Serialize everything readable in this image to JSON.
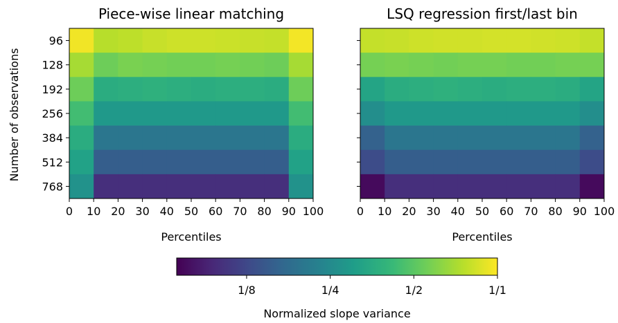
{
  "chart_data": {
    "type": "heatmap",
    "colormap": "viridis",
    "log_scale_color": true,
    "x_categories": [
      "0-10",
      "10-20",
      "20-30",
      "30-40",
      "40-50",
      "50-60",
      "60-70",
      "70-80",
      "80-90",
      "90-100"
    ],
    "x_ticks": [
      "0",
      "10",
      "20",
      "30",
      "40",
      "50",
      "60",
      "70",
      "80",
      "90",
      "100"
    ],
    "y_categories": [
      "96",
      "128",
      "192",
      "256",
      "384",
      "512",
      "768"
    ],
    "ylabel": "Number of observations",
    "panels": [
      {
        "title": "Piece-wise linear matching",
        "xlabel": "Percentiles",
        "values": [
          [
            0.95,
            0.75,
            0.77,
            0.8,
            0.82,
            0.82,
            0.81,
            0.8,
            0.79,
            0.96
          ],
          [
            0.7,
            0.55,
            0.58,
            0.57,
            0.56,
            0.56,
            0.57,
            0.56,
            0.55,
            0.7
          ],
          [
            0.55,
            0.36,
            0.37,
            0.38,
            0.37,
            0.36,
            0.37,
            0.37,
            0.36,
            0.55
          ],
          [
            0.44,
            0.29,
            0.29,
            0.29,
            0.29,
            0.29,
            0.29,
            0.29,
            0.29,
            0.44
          ],
          [
            0.36,
            0.2,
            0.2,
            0.2,
            0.2,
            0.2,
            0.2,
            0.2,
            0.2,
            0.36
          ],
          [
            0.32,
            0.155,
            0.155,
            0.155,
            0.155,
            0.155,
            0.155,
            0.155,
            0.155,
            0.32
          ],
          [
            0.27,
            0.1,
            0.1,
            0.1,
            0.1,
            0.1,
            0.1,
            0.1,
            0.1,
            0.27
          ]
        ]
      },
      {
        "title": "LSQ regression first/last bin",
        "xlabel": "Percentiles",
        "values": [
          [
            0.79,
            0.8,
            0.82,
            0.83,
            0.83,
            0.84,
            0.84,
            0.83,
            0.82,
            0.79
          ],
          [
            0.57,
            0.58,
            0.57,
            0.56,
            0.57,
            0.57,
            0.56,
            0.56,
            0.57,
            0.57
          ],
          [
            0.33,
            0.36,
            0.37,
            0.38,
            0.37,
            0.36,
            0.37,
            0.37,
            0.36,
            0.33
          ],
          [
            0.26,
            0.29,
            0.29,
            0.29,
            0.29,
            0.29,
            0.29,
            0.29,
            0.29,
            0.26
          ],
          [
            0.16,
            0.2,
            0.2,
            0.2,
            0.2,
            0.2,
            0.2,
            0.2,
            0.2,
            0.16
          ],
          [
            0.13,
            0.155,
            0.155,
            0.155,
            0.155,
            0.155,
            0.155,
            0.155,
            0.155,
            0.13
          ],
          [
            0.075,
            0.1,
            0.1,
            0.1,
            0.1,
            0.1,
            0.1,
            0.1,
            0.1,
            0.075
          ]
        ]
      }
    ],
    "colorbar": {
      "label": "Normalized slope variance",
      "range": [
        0.07,
        1.0
      ],
      "ticks": [
        0.125,
        0.25,
        0.5,
        1.0
      ],
      "tick_labels": [
        "1/8",
        "1/4",
        "1/2",
        "1/1"
      ]
    }
  }
}
